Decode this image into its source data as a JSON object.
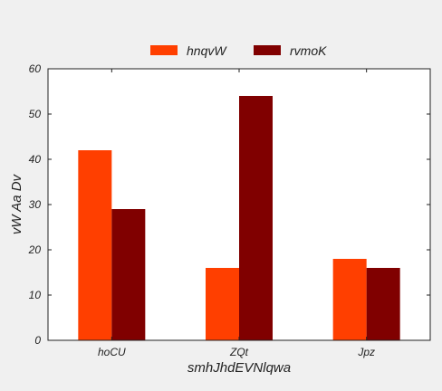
{
  "chart_data": {
    "type": "bar",
    "categories": [
      "hoCU",
      "ZQt",
      "Jpz"
    ],
    "series": [
      {
        "name": "hnqvW",
        "values": [
          42,
          16,
          18
        ],
        "color": "#ff3f00"
      },
      {
        "name": "rvmoK",
        "values": [
          29,
          54,
          16
        ],
        "color": "#800000"
      }
    ],
    "xlabel": "smhJhdEVNlqwa",
    "ylabel": "vW Aa Dv",
    "ylim": [
      0,
      60
    ],
    "yticks": [
      0,
      10,
      20,
      30,
      40,
      50,
      60
    ],
    "grid": false,
    "legend_position": "top-center",
    "background_color": "#f0f0f0",
    "plot_background_color": "#ffffff"
  }
}
